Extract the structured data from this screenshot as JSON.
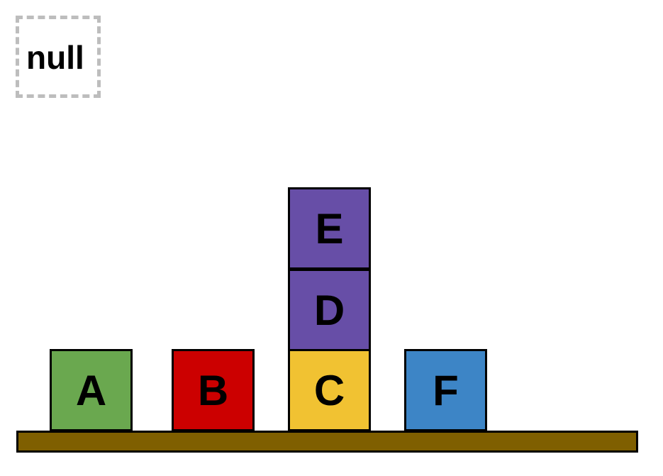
{
  "held_block": {
    "label": "null"
  },
  "table": {
    "color": "#7f5f00"
  },
  "blocks": [
    {
      "label": "A",
      "color": "#6aa84f"
    },
    {
      "label": "B",
      "color": "#cc0000"
    },
    {
      "label": "C",
      "color": "#f1c232"
    },
    {
      "label": "D",
      "color": "#674ea7"
    },
    {
      "label": "E",
      "color": "#674ea7"
    },
    {
      "label": "F",
      "color": "#3d85c6"
    }
  ],
  "stacks": [
    [
      "A"
    ],
    [
      "B"
    ],
    [
      "C",
      "D",
      "E"
    ],
    [
      "F"
    ]
  ]
}
